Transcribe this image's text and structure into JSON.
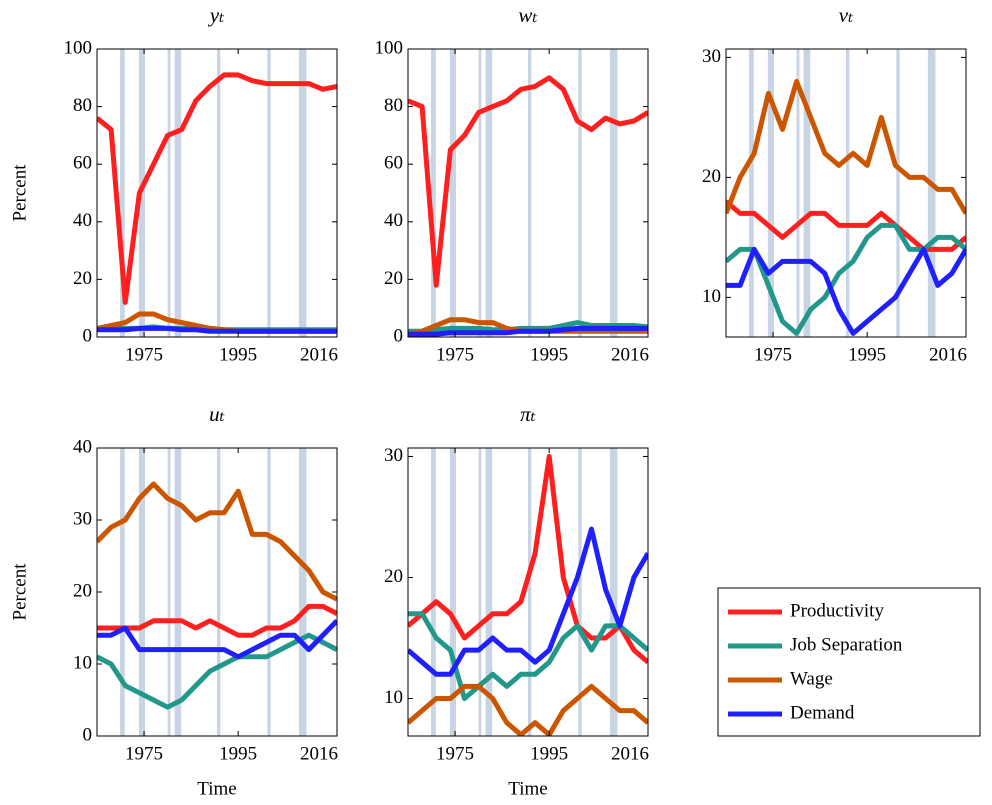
{
  "legend": [
    {
      "name": "Productivity",
      "color": "#ff1f1f"
    },
    {
      "name": "Job Separation",
      "color": "#21988a"
    },
    {
      "name": "Wage",
      "color": "#cc5500"
    },
    {
      "name": "Demand",
      "color": "#1f1fff"
    }
  ],
  "recessions": [
    [
      1969.9,
      1970.9
    ],
    [
      1973.9,
      1975.2
    ],
    [
      1980.0,
      1980.6
    ],
    [
      1981.5,
      1982.9
    ],
    [
      1990.5,
      1991.2
    ],
    [
      2001.2,
      2001.9
    ],
    [
      2007.9,
      2009.5
    ]
  ],
  "chart_data": [
    {
      "type": "line",
      "title": "yₜ",
      "ylabel": "Percent",
      "x": [
        1965,
        1968,
        1971,
        1974,
        1977,
        1980,
        1983,
        1986,
        1989,
        1992,
        1995,
        1998,
        2001,
        2004,
        2007,
        2010,
        2013,
        2016
      ],
      "xlim": [
        1965,
        2016
      ],
      "xticks": [
        1975,
        1995,
        2016
      ],
      "ylim": [
        0,
        100
      ],
      "yticks": [
        0,
        20,
        40,
        60,
        80,
        100
      ],
      "series": [
        {
          "values": [
            76,
            72,
            12,
            50,
            60,
            70,
            72,
            82,
            87,
            91,
            91,
            89,
            88,
            88,
            88,
            88,
            86,
            87
          ]
        },
        {
          "values": [
            3,
            3,
            3,
            3,
            3.5,
            3,
            3,
            3,
            3,
            2.5,
            2.5,
            2.5,
            2.5,
            2.5,
            2.5,
            2.5,
            2.5,
            2.5
          ]
        },
        {
          "values": [
            3,
            4,
            5,
            8,
            8,
            6,
            5,
            4,
            3,
            2.5,
            2,
            2,
            2,
            2,
            2,
            2,
            2,
            2
          ]
        },
        {
          "values": [
            2.5,
            2.5,
            2.5,
            3,
            3,
            3,
            2.5,
            2.5,
            2,
            2,
            2,
            2,
            2,
            2,
            2,
            2,
            2,
            2
          ]
        }
      ]
    },
    {
      "type": "line",
      "title": "wₜ",
      "x": [
        1965,
        1968,
        1971,
        1974,
        1977,
        1980,
        1983,
        1986,
        1989,
        1992,
        1995,
        1998,
        2001,
        2004,
        2007,
        2010,
        2013,
        2016
      ],
      "xlim": [
        1965,
        2016
      ],
      "xticks": [
        1975,
        1995,
        2016
      ],
      "ylim": [
        0,
        100
      ],
      "yticks": [
        0,
        20,
        40,
        60,
        80,
        100
      ],
      "series": [
        {
          "values": [
            82,
            80,
            18,
            65,
            70,
            78,
            80,
            82,
            86,
            87,
            90,
            86,
            75,
            72,
            76,
            74,
            75,
            78
          ]
        },
        {
          "values": [
            2,
            2,
            2.5,
            3,
            3,
            3,
            2.5,
            2.5,
            3,
            3,
            3,
            4,
            5,
            4,
            4,
            4,
            4,
            3.5
          ]
        },
        {
          "values": [
            1,
            2,
            4,
            6,
            6,
            5,
            5,
            3,
            2,
            2,
            2,
            2,
            2,
            2,
            2,
            2,
            2,
            2
          ]
        },
        {
          "values": [
            1,
            1,
            1,
            1.5,
            1.5,
            1.5,
            1.5,
            1.5,
            2,
            2,
            2,
            2.5,
            3,
            3,
            3,
            3,
            3,
            3
          ]
        }
      ]
    },
    {
      "type": "line",
      "title": "vₜ",
      "x": [
        1965,
        1968,
        1971,
        1974,
        1977,
        1980,
        1983,
        1986,
        1989,
        1992,
        1995,
        1998,
        2001,
        2004,
        2007,
        2010,
        2013,
        2016
      ],
      "xlim": [
        1965,
        2016
      ],
      "xticks": [
        1975,
        1995,
        2016
      ],
      "ylim": [
        6.7,
        30.7
      ],
      "yticks": [
        10,
        20,
        30
      ],
      "series": [
        {
          "values": [
            18,
            17,
            17,
            16,
            15,
            16,
            17,
            17,
            16,
            16,
            16,
            17,
            16,
            15,
            14,
            14,
            14,
            15
          ]
        },
        {
          "values": [
            13,
            14,
            14,
            11,
            8,
            7,
            9,
            10,
            12,
            13,
            15,
            16,
            16,
            14,
            14,
            15,
            15,
            14
          ]
        },
        {
          "values": [
            17,
            20,
            22,
            27,
            24,
            28,
            25,
            22,
            21,
            22,
            21,
            25,
            21,
            20,
            20,
            19,
            19,
            17
          ]
        },
        {
          "values": [
            11,
            11,
            14,
            12,
            13,
            13,
            13,
            12,
            9,
            7,
            8,
            9,
            10,
            12,
            14,
            11,
            12,
            14
          ]
        }
      ]
    },
    {
      "type": "line",
      "title": "uₜ",
      "ylabel": "Percent",
      "xlabel": "Time",
      "x": [
        1965,
        1968,
        1971,
        1974,
        1977,
        1980,
        1983,
        1986,
        1989,
        1992,
        1995,
        1998,
        2001,
        2004,
        2007,
        2010,
        2013,
        2016
      ],
      "xlim": [
        1965,
        2016
      ],
      "xticks": [
        1975,
        1995,
        2016
      ],
      "ylim": [
        0,
        40
      ],
      "yticks": [
        0,
        10,
        20,
        30,
        40
      ],
      "series": [
        {
          "values": [
            15,
            15,
            15,
            15,
            16,
            16,
            16,
            15,
            16,
            15,
            14,
            14,
            15,
            15,
            16,
            18,
            18,
            17
          ]
        },
        {
          "values": [
            11,
            10,
            7,
            6,
            5,
            4,
            5,
            7,
            9,
            10,
            11,
            11,
            11,
            12,
            13,
            14,
            13,
            12
          ]
        },
        {
          "values": [
            27,
            29,
            30,
            33,
            35,
            33,
            32,
            30,
            31,
            31,
            34,
            28,
            28,
            27,
            25,
            23,
            20,
            19
          ]
        },
        {
          "values": [
            14,
            14,
            15,
            12,
            12,
            12,
            12,
            12,
            12,
            12,
            11,
            12,
            13,
            14,
            14,
            12,
            14,
            16
          ]
        }
      ]
    },
    {
      "type": "line",
      "title": "πₜ",
      "xlabel": "Time",
      "x": [
        1965,
        1968,
        1971,
        1974,
        1977,
        1980,
        1983,
        1986,
        1989,
        1992,
        1995,
        1998,
        2001,
        2004,
        2007,
        2010,
        2013,
        2016
      ],
      "xlim": [
        1965,
        2016
      ],
      "xticks": [
        1975,
        1995,
        2016
      ],
      "ylim": [
        6.9,
        30.7
      ],
      "yticks": [
        10,
        20,
        30
      ],
      "series": [
        {
          "values": [
            16,
            17,
            18,
            17,
            15,
            16,
            17,
            17,
            18,
            22,
            30,
            20,
            16,
            15,
            15,
            16,
            14,
            13
          ]
        },
        {
          "values": [
            17,
            17,
            15,
            14,
            10,
            11,
            12,
            11,
            12,
            12,
            13,
            15,
            16,
            14,
            16,
            16,
            15,
            14
          ]
        },
        {
          "values": [
            8,
            9,
            10,
            10,
            11,
            11,
            10,
            8,
            7,
            8,
            7,
            9,
            10,
            11,
            10,
            9,
            9,
            8
          ]
        },
        {
          "values": [
            14,
            13,
            12,
            12,
            14,
            14,
            15,
            14,
            14,
            13,
            14,
            17,
            20,
            24,
            19,
            16,
            20,
            22
          ]
        }
      ]
    }
  ]
}
